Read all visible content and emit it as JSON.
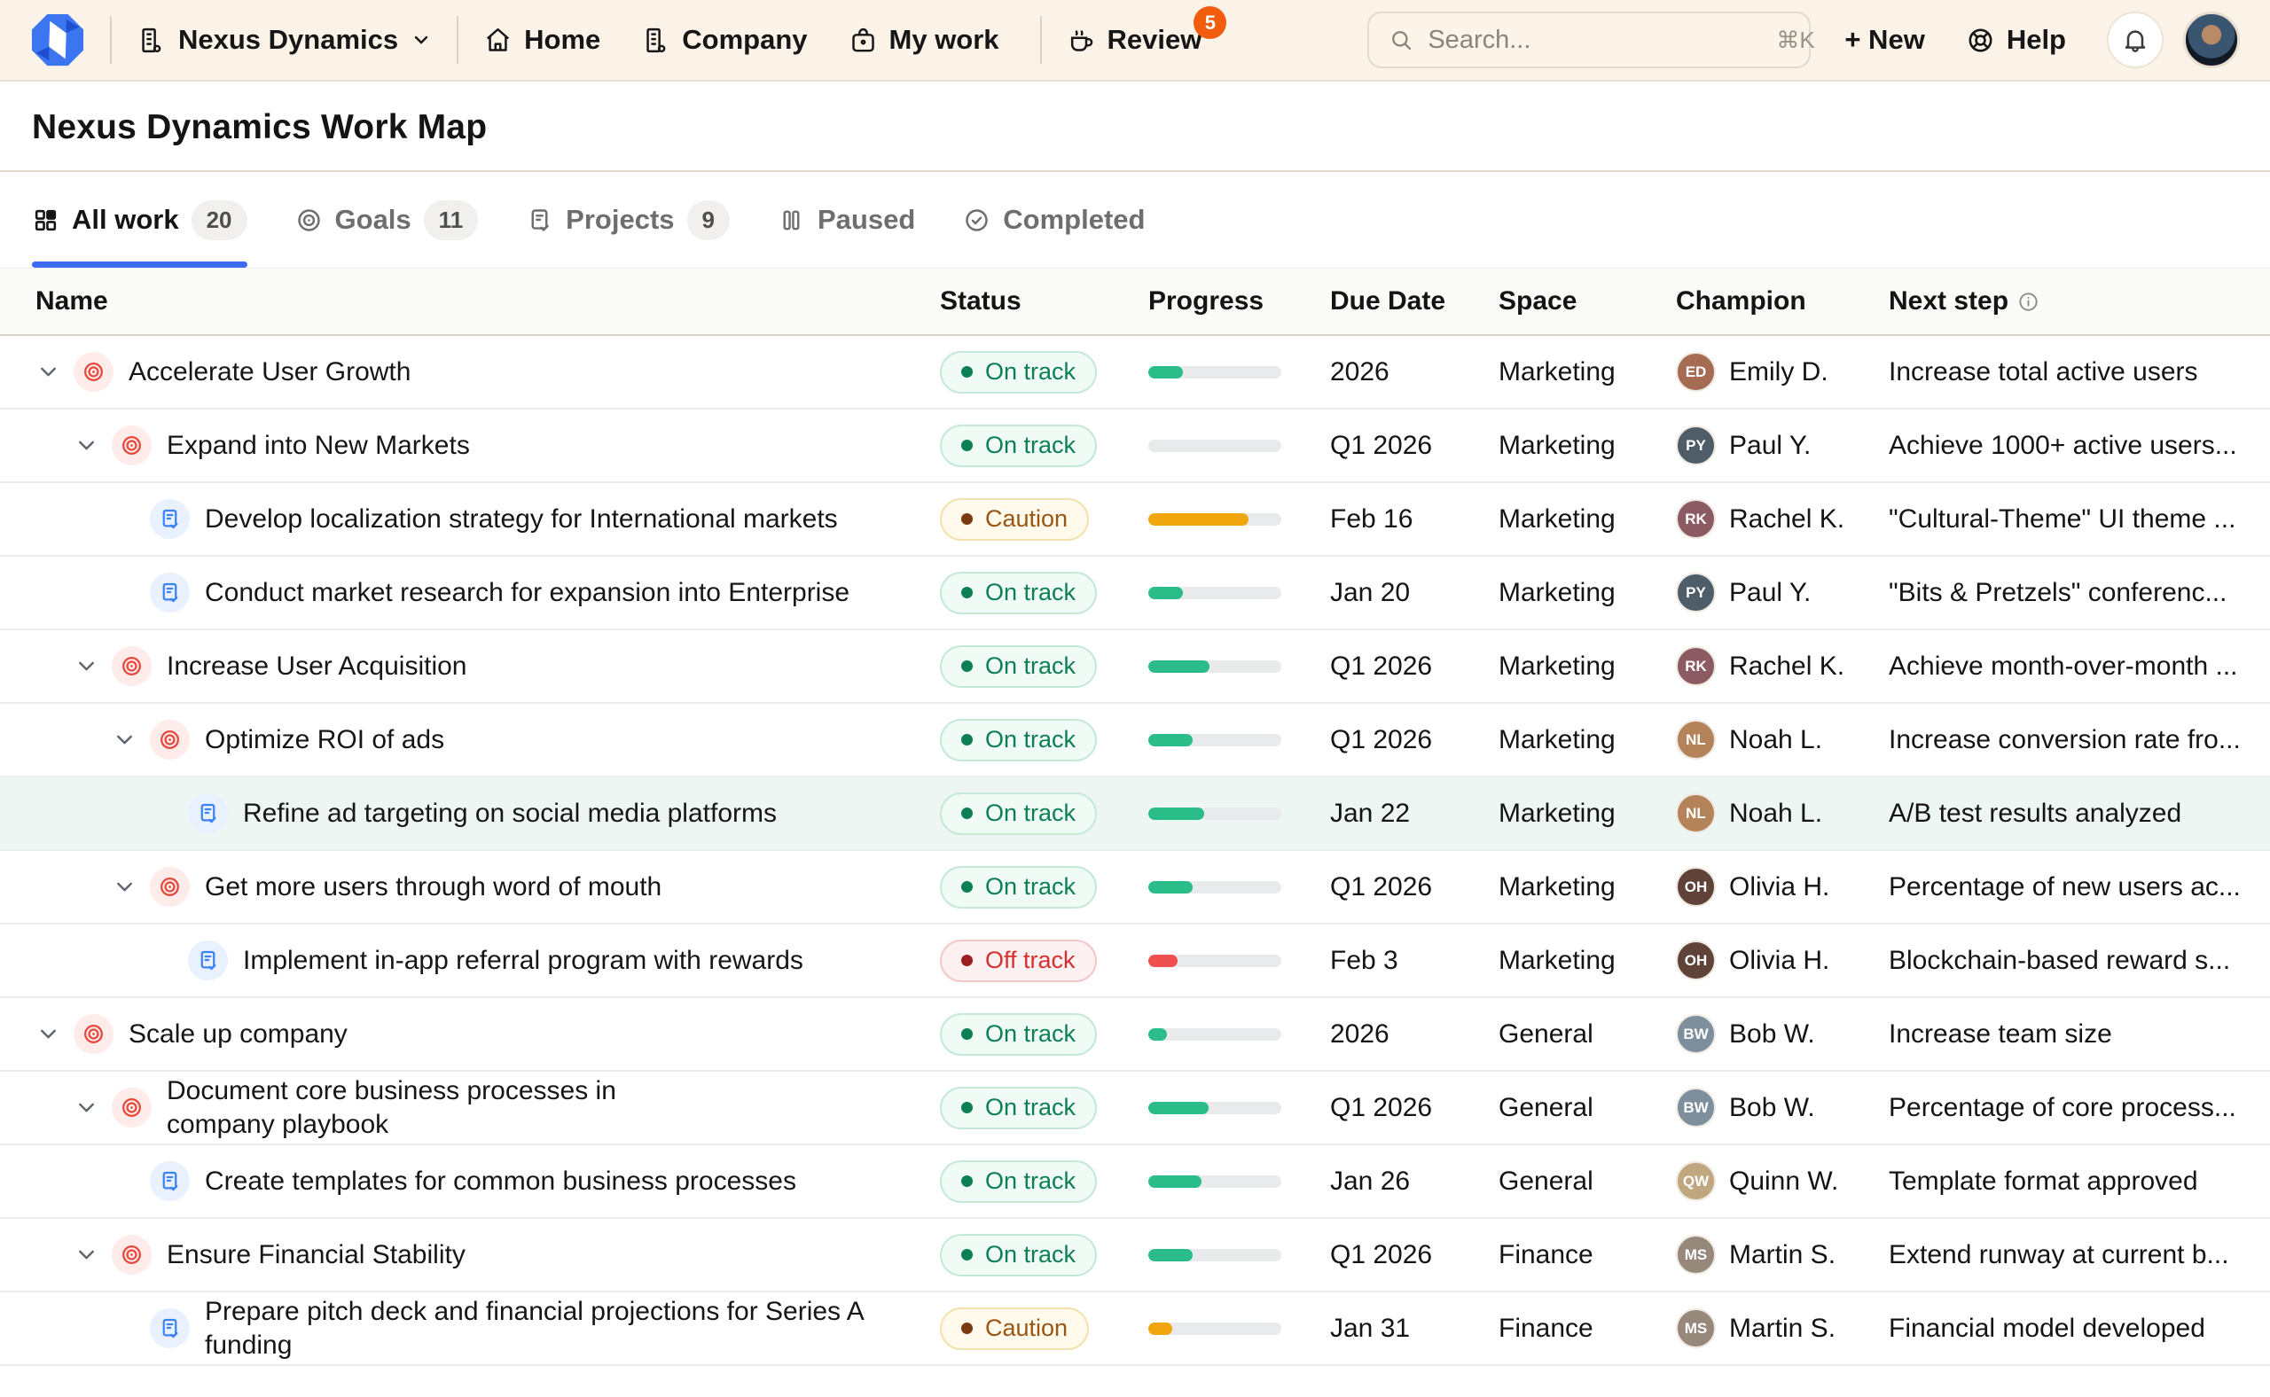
{
  "colors": {
    "accent": "#3d6cf2",
    "goal_icon": "#e8463a",
    "project_icon": "#3b82f6",
    "statuses": {
      "on_track": {
        "bg": "#f0fbf5",
        "border": "#c5e9d6",
        "text": "#0c7f54",
        "dot": "#0c7f54",
        "bar": "#2abd8a"
      },
      "caution": {
        "bg": "#fffaeb",
        "border": "#f3e2ad",
        "text": "#9a5514",
        "dot": "#7b3a10",
        "bar": "#f2a60d"
      },
      "off_track": {
        "bg": "#fdf1f1",
        "border": "#f3c7c7",
        "text": "#d63030",
        "dot": "#9c1f1f",
        "bar": "#ee5050"
      }
    }
  },
  "topnav": {
    "org_name": "Nexus Dynamics",
    "home": "Home",
    "company": "Company",
    "my_work": "My work",
    "review": "Review",
    "review_badge": "5",
    "new_button": "+ New",
    "help": "Help",
    "search": {
      "placeholder": "Search...",
      "shortcut": "⌘K"
    }
  },
  "page": {
    "title": "Nexus Dynamics Work Map"
  },
  "tabs": [
    {
      "label": "All work",
      "count": "20",
      "icon": "grid",
      "active": true
    },
    {
      "label": "Goals",
      "count": "11",
      "icon": "target",
      "active": false
    },
    {
      "label": "Projects",
      "count": "9",
      "icon": "doc",
      "active": false
    },
    {
      "label": "Paused",
      "count": "",
      "icon": "pause",
      "active": false
    },
    {
      "label": "Completed",
      "count": "",
      "icon": "check",
      "active": false
    }
  ],
  "table": {
    "columns": {
      "name": "Name",
      "status": "Status",
      "progress": "Progress",
      "due": "Due Date",
      "space": "Space",
      "champion": "Champion",
      "next": "Next step"
    },
    "rows": [
      {
        "name": "Accelerate User Growth",
        "type": "goal",
        "level": 0,
        "has_children": true,
        "status": "on_track",
        "status_label": "On track",
        "progress": 26,
        "due": "2026",
        "space": "Marketing",
        "champion": "Emily D.",
        "initials": "ED",
        "avatar_color": "#a56b53",
        "next_step": "Increase total active users",
        "highlighted": false
      },
      {
        "name": "Expand into New Markets",
        "type": "goal",
        "level": 1,
        "has_children": true,
        "status": "on_track",
        "status_label": "On track",
        "progress": 0,
        "due": "Q1 2026",
        "space": "Marketing",
        "champion": "Paul Y.",
        "initials": "PY",
        "avatar_color": "#4f5d68",
        "next_step": "Achieve 1000+ active users...",
        "highlighted": false
      },
      {
        "name": "Develop localization strategy for International markets",
        "type": "project",
        "level": 2,
        "has_children": false,
        "status": "caution",
        "status_label": "Caution",
        "progress": 75,
        "due": "Feb 16",
        "space": "Marketing",
        "champion": "Rachel K.",
        "initials": "RK",
        "avatar_color": "#8c5a62",
        "next_step": "\"Cultural-Theme\" UI theme ...",
        "highlighted": false
      },
      {
        "name": "Conduct market research for expansion into Enterprise",
        "type": "project",
        "level": 2,
        "has_children": false,
        "status": "on_track",
        "status_label": "On track",
        "progress": 26,
        "due": "Jan 20",
        "space": "Marketing",
        "champion": "Paul Y.",
        "initials": "PY",
        "avatar_color": "#4f5d68",
        "next_step": "\"Bits & Pretzels\" conferenc...",
        "highlighted": false
      },
      {
        "name": "Increase User Acquisition",
        "type": "goal",
        "level": 1,
        "has_children": true,
        "status": "on_track",
        "status_label": "On track",
        "progress": 46,
        "due": "Q1 2026",
        "space": "Marketing",
        "champion": "Rachel K.",
        "initials": "RK",
        "avatar_color": "#8c5a62",
        "next_step": "Achieve month-over-month ...",
        "highlighted": false
      },
      {
        "name": "Optimize ROI of ads",
        "type": "goal",
        "level": 2,
        "has_children": true,
        "status": "on_track",
        "status_label": "On track",
        "progress": 33,
        "due": "Q1 2026",
        "space": "Marketing",
        "champion": "Noah L.",
        "initials": "NL",
        "avatar_color": "#b5835a",
        "next_step": "Increase conversion rate fro...",
        "highlighted": false
      },
      {
        "name": "Refine ad targeting on social media platforms",
        "type": "project",
        "level": 3,
        "has_children": false,
        "status": "on_track",
        "status_label": "On track",
        "progress": 42,
        "due": "Jan 22",
        "space": "Marketing",
        "champion": "Noah L.",
        "initials": "NL",
        "avatar_color": "#b5835a",
        "next_step": "A/B test results analyzed",
        "highlighted": true
      },
      {
        "name": "Get more users through word of mouth",
        "type": "goal",
        "level": 2,
        "has_children": true,
        "status": "on_track",
        "status_label": "On track",
        "progress": 33,
        "due": "Q1 2026",
        "space": "Marketing",
        "champion": "Olivia H.",
        "initials": "OH",
        "avatar_color": "#5f4339",
        "next_step": "Percentage of new users ac...",
        "highlighted": false
      },
      {
        "name": "Implement in-app referral program with rewards",
        "type": "project",
        "level": 3,
        "has_children": false,
        "status": "off_track",
        "status_label": "Off track",
        "progress": 22,
        "due": "Feb 3",
        "space": "Marketing",
        "champion": "Olivia H.",
        "initials": "OH",
        "avatar_color": "#5f4339",
        "next_step": "Blockchain-based reward s...",
        "highlighted": false
      },
      {
        "name": "Scale up company",
        "type": "goal",
        "level": 0,
        "has_children": true,
        "status": "on_track",
        "status_label": "On track",
        "progress": 14,
        "due": "2026",
        "space": "General",
        "champion": "Bob W.",
        "initials": "BW",
        "avatar_color": "#7d8e9c",
        "next_step": "Increase team size",
        "highlighted": false
      },
      {
        "name": "Document core business processes in company playbook",
        "type": "goal",
        "level": 1,
        "has_children": true,
        "status": "on_track",
        "status_label": "On track",
        "progress": 45,
        "due": "Q1 2026",
        "space": "General",
        "champion": "Bob W.",
        "initials": "BW",
        "avatar_color": "#7d8e9c",
        "next_step": "Percentage of core process...",
        "highlighted": false,
        "wrap_width": 600
      },
      {
        "name": "Create templates for common business processes",
        "type": "project",
        "level": 2,
        "has_children": false,
        "status": "on_track",
        "status_label": "On track",
        "progress": 40,
        "due": "Jan 26",
        "space": "General",
        "champion": "Quinn W.",
        "initials": "QW",
        "avatar_color": "#c0a77f",
        "next_step": "Template format approved",
        "highlighted": false
      },
      {
        "name": "Ensure Financial Stability",
        "type": "goal",
        "level": 1,
        "has_children": true,
        "status": "on_track",
        "status_label": "On track",
        "progress": 33,
        "due": "Q1 2026",
        "space": "Finance",
        "champion": "Martin S.",
        "initials": "MS",
        "avatar_color": "#96887a",
        "next_step": "Extend runway at current b...",
        "highlighted": false
      },
      {
        "name": "Prepare pitch deck and financial projections for Series A funding",
        "type": "project",
        "level": 2,
        "has_children": false,
        "status": "caution",
        "status_label": "Caution",
        "progress": 18,
        "due": "Jan 31",
        "space": "Finance",
        "champion": "Martin S.",
        "initials": "MS",
        "avatar_color": "#96887a",
        "next_step": "Financial model developed",
        "highlighted": false,
        "wrap_width": 830
      }
    ]
  }
}
